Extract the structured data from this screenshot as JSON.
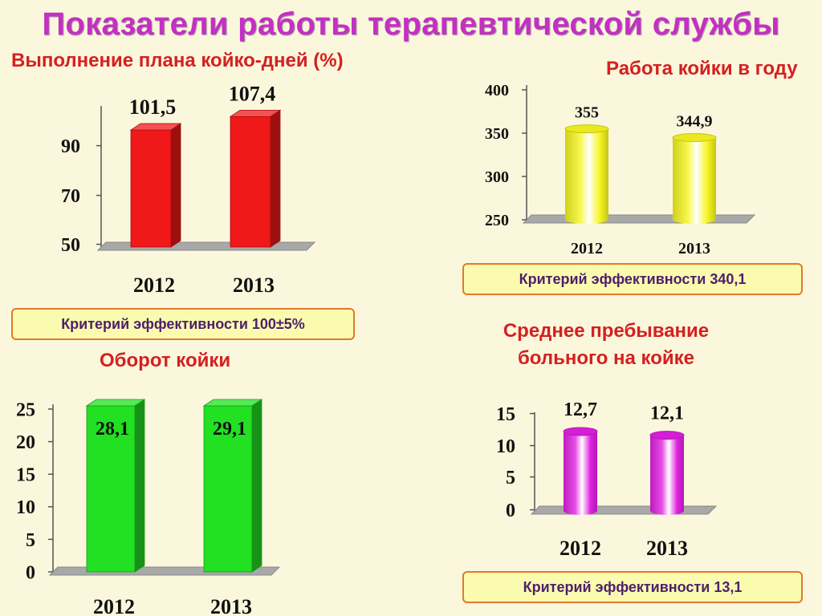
{
  "title": "Показатели работы терапевтической службы",
  "panels": {
    "plan": {
      "subtitle": "Выполнение плана койко-дней (%)",
      "criterion": "Критерий эффективности 100±5%"
    },
    "work": {
      "subtitle": "Работа койки в году",
      "criterion": "Критерий эффективности 340,1"
    },
    "turnover": {
      "subtitle": "Оборот койки"
    },
    "stay": {
      "subtitle_line1": "Среднее пребывание",
      "subtitle_line2": "больного на койке",
      "criterion": "Критерий эффективности 13,1"
    }
  },
  "chart_data": [
    {
      "type": "bar",
      "title": "Выполнение плана койко-дней (%)",
      "categories": [
        "2012",
        "2013"
      ],
      "values": [
        101.5,
        107.4
      ],
      "value_labels": [
        "101,5",
        "107,4"
      ],
      "yticks": [
        "50",
        "70",
        "90"
      ],
      "ylim": [
        50,
        110
      ],
      "color": "#f01818",
      "style": "box"
    },
    {
      "type": "bar",
      "title": "Работа койки в году",
      "categories": [
        "2012",
        "2013"
      ],
      "values": [
        355,
        344.9
      ],
      "value_labels": [
        "355",
        "344,9"
      ],
      "yticks": [
        "250",
        "300",
        "350",
        "400"
      ],
      "ylim": [
        250,
        400
      ],
      "color": "#f5f520",
      "style": "cylinder"
    },
    {
      "type": "bar",
      "title": "Оборот койки",
      "categories": [
        "2012",
        "2013"
      ],
      "values": [
        28.1,
        29.1
      ],
      "value_labels": [
        "28,1",
        "29,1"
      ],
      "yticks": [
        "0",
        "5",
        "10",
        "15",
        "20",
        "25"
      ],
      "ylim": [
        0,
        25
      ],
      "color": "#22e022",
      "style": "box"
    },
    {
      "type": "bar",
      "title": "Среднее пребывание больного на койке",
      "categories": [
        "2012",
        "2013"
      ],
      "values": [
        12.7,
        12.1
      ],
      "value_labels": [
        "12,7",
        "12,1"
      ],
      "yticks": [
        "0",
        "5",
        "10",
        "15"
      ],
      "ylim": [
        0,
        15
      ],
      "color": "#e020e0",
      "style": "cylinder"
    }
  ]
}
